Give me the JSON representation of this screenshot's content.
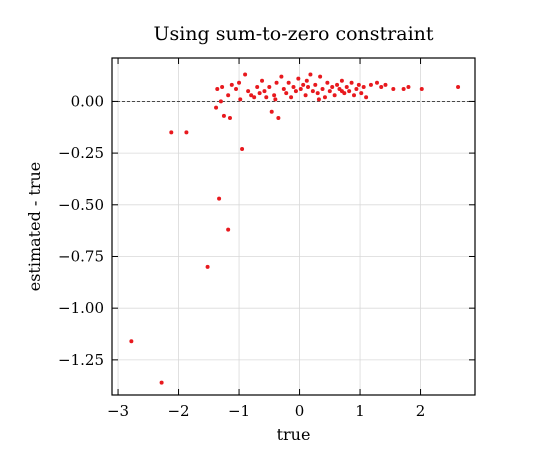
{
  "chart_data": {
    "type": "scatter",
    "title": "Using sum-to-zero constraint",
    "xlabel": "true",
    "ylabel": "estimated - true",
    "xlim": [
      -3.1,
      2.9
    ],
    "ylim": [
      -1.42,
      0.21
    ],
    "xticks": [
      -3,
      -2,
      -1,
      0,
      1,
      2
    ],
    "xtick_labels": [
      "−3",
      "−2",
      "−1",
      "0",
      "1",
      "2"
    ],
    "yticks": [
      0.0,
      -0.25,
      -0.5,
      -0.75,
      -1.0,
      -1.25
    ],
    "ytick_labels": [
      "0.00",
      "−0.25",
      "−0.50",
      "−0.75",
      "−1.00",
      "−1.25"
    ],
    "grid": true,
    "reference_line": {
      "y": 0,
      "style": "dashed",
      "color": "#333333"
    },
    "point_color": "#e8191e",
    "points": [
      [
        -2.78,
        -1.16
      ],
      [
        -2.28,
        -1.36
      ],
      [
        -2.12,
        -0.15
      ],
      [
        -1.87,
        -0.15
      ],
      [
        -1.52,
        -0.8
      ],
      [
        -1.33,
        -0.47
      ],
      [
        -1.18,
        -0.62
      ],
      [
        -0.95,
        -0.23
      ],
      [
        -1.38,
        -0.03
      ],
      [
        -1.36,
        0.06
      ],
      [
        -1.28,
        0.07
      ],
      [
        -1.3,
        0.0
      ],
      [
        -1.25,
        -0.07
      ],
      [
        -1.15,
        -0.08
      ],
      [
        -1.18,
        0.03
      ],
      [
        -1.12,
        0.08
      ],
      [
        -1.05,
        0.06
      ],
      [
        -1.0,
        0.09
      ],
      [
        -0.98,
        0.01
      ],
      [
        -0.9,
        0.13
      ],
      [
        -0.85,
        0.05
      ],
      [
        -0.8,
        0.03
      ],
      [
        -0.75,
        0.02
      ],
      [
        -0.7,
        0.07
      ],
      [
        -0.66,
        0.04
      ],
      [
        -0.62,
        0.1
      ],
      [
        -0.58,
        0.05
      ],
      [
        -0.55,
        0.02
      ],
      [
        -0.5,
        0.07
      ],
      [
        -0.46,
        -0.05
      ],
      [
        -0.42,
        0.03
      ],
      [
        -0.38,
        0.09
      ],
      [
        -0.35,
        -0.08
      ],
      [
        -0.3,
        0.12
      ],
      [
        -0.26,
        0.06
      ],
      [
        -0.22,
        0.04
      ],
      [
        -0.18,
        0.09
      ],
      [
        -0.14,
        0.02
      ],
      [
        -0.1,
        0.07
      ],
      [
        -0.06,
        0.05
      ],
      [
        -0.02,
        0.11
      ],
      [
        0.02,
        0.06
      ],
      [
        0.06,
        0.08
      ],
      [
        0.1,
        0.03
      ],
      [
        0.14,
        0.07
      ],
      [
        0.18,
        0.13
      ],
      [
        0.22,
        0.05
      ],
      [
        0.26,
        0.08
      ],
      [
        0.3,
        0.04
      ],
      [
        0.34,
        0.12
      ],
      [
        0.38,
        0.06
      ],
      [
        0.42,
        0.02
      ],
      [
        0.46,
        0.09
      ],
      [
        0.5,
        0.05
      ],
      [
        0.54,
        0.07
      ],
      [
        0.58,
        0.03
      ],
      [
        0.62,
        0.08
      ],
      [
        0.66,
        0.06
      ],
      [
        0.7,
        0.1
      ],
      [
        0.74,
        0.04
      ],
      [
        0.78,
        0.07
      ],
      [
        0.82,
        0.05
      ],
      [
        0.86,
        0.09
      ],
      [
        0.9,
        0.03
      ],
      [
        0.94,
        0.06
      ],
      [
        0.98,
        0.08
      ],
      [
        1.02,
        0.04
      ],
      [
        1.06,
        0.07
      ],
      [
        1.1,
        0.02
      ],
      [
        1.18,
        0.08
      ],
      [
        1.28,
        0.09
      ],
      [
        1.35,
        0.07
      ],
      [
        1.42,
        0.08
      ],
      [
        1.55,
        0.06
      ],
      [
        1.72,
        0.06
      ],
      [
        1.8,
        0.07
      ],
      [
        2.02,
        0.06
      ],
      [
        2.62,
        0.07
      ],
      [
        0.32,
        0.01
      ],
      [
        0.7,
        0.05
      ],
      [
        -0.4,
        0.01
      ],
      [
        0.12,
        0.1
      ]
    ]
  }
}
